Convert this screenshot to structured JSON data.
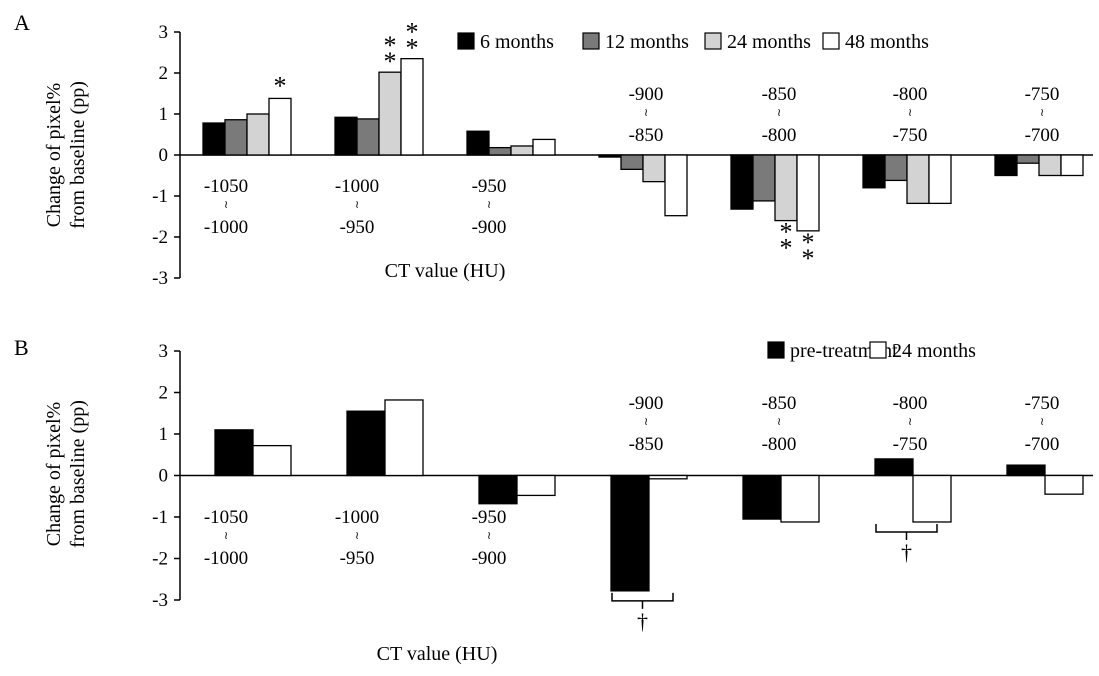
{
  "panels": [
    {
      "label": "A",
      "ylabel_line1": "Change of pixel%",
      "ylabel_line2": "from baseline (pp)",
      "xlabel": "CT value (HU)",
      "yticks": [
        "3",
        "2",
        "1",
        "0",
        "-1",
        "-2",
        "-3"
      ],
      "legend": [
        "6 months",
        "12 months",
        "24 months",
        "48 months"
      ],
      "categories": [
        {
          "top": "-1050",
          "tilde": "≀",
          "bottom": "-1000"
        },
        {
          "top": "-1000",
          "tilde": "≀",
          "bottom": "-950"
        },
        {
          "top": "-950",
          "tilde": "≀",
          "bottom": "-900"
        },
        {
          "top": "-900",
          "tilde": "≀",
          "bottom": "-850"
        },
        {
          "top": "-850",
          "tilde": "≀",
          "bottom": "-800"
        },
        {
          "top": "-800",
          "tilde": "≀",
          "bottom": "-750"
        },
        {
          "top": "-750",
          "tilde": "≀",
          "bottom": "-700"
        }
      ],
      "markers": {
        "single": "*",
        "double": "**"
      }
    },
    {
      "label": "B",
      "ylabel_line1": "Change of pixel%",
      "ylabel_line2": "from baseline (pp)",
      "xlabel": "CT value (HU)",
      "yticks": [
        "3",
        "2",
        "1",
        "0",
        "-1",
        "-2",
        "-3"
      ],
      "legend": [
        "pre-treatment",
        "24 months"
      ],
      "categories": [
        {
          "top": "-1050",
          "tilde": "≀",
          "bottom": "-1000"
        },
        {
          "top": "-1000",
          "tilde": "≀",
          "bottom": "-950"
        },
        {
          "top": "-950",
          "tilde": "≀",
          "bottom": "-900"
        },
        {
          "top": "-900",
          "tilde": "≀",
          "bottom": "-850"
        },
        {
          "top": "-850",
          "tilde": "≀",
          "bottom": "-800"
        },
        {
          "top": "-800",
          "tilde": "≀",
          "bottom": "-750"
        },
        {
          "top": "-750",
          "tilde": "≀",
          "bottom": "-700"
        }
      ],
      "markers": {
        "dagger": "†"
      }
    }
  ],
  "chart_data": [
    {
      "type": "bar",
      "panel": "A",
      "ylabel": "Change of pixel% from baseline (pp)",
      "xlabel": "CT value (HU)",
      "ylim": [
        -3,
        3
      ],
      "categories": [
        "-1050 ≀ -1000",
        "-1000 ≀ -950",
        "-950 ≀ -900",
        "-900 ≀ -850",
        "-850 ≀ -800",
        "-800 ≀ -750",
        "-750 ≀ -700"
      ],
      "legend_position": "top-right",
      "series": [
        {
          "name": "6 months",
          "color": "#000000",
          "values": [
            0.78,
            0.92,
            0.58,
            -0.05,
            -1.32,
            -0.8,
            -0.5
          ]
        },
        {
          "name": "12 months",
          "color": "#7a7a7a",
          "values": [
            0.86,
            0.88,
            0.18,
            -0.35,
            -1.12,
            -0.62,
            -0.2
          ]
        },
        {
          "name": "24 months",
          "color": "#d3d3d3",
          "values": [
            1.0,
            2.02,
            0.22,
            -0.65,
            -1.6,
            -1.18,
            -0.5
          ]
        },
        {
          "name": "48 months",
          "color": "#ffffff",
          "values": [
            1.38,
            2.35,
            0.38,
            -1.48,
            -1.85,
            -1.18,
            -0.5
          ]
        }
      ],
      "annotations": [
        {
          "category_index": 0,
          "series_index": 3,
          "text": "*"
        },
        {
          "category_index": 1,
          "series_index": 2,
          "text": "**"
        },
        {
          "category_index": 1,
          "series_index": 3,
          "text": "**"
        },
        {
          "category_index": 4,
          "series_index": 2,
          "text": "**"
        },
        {
          "category_index": 4,
          "series_index": 3,
          "text": "**"
        }
      ]
    },
    {
      "type": "bar",
      "panel": "B",
      "ylabel": "Change of pixel% from baseline (pp)",
      "xlabel": "CT value (HU)",
      "ylim": [
        -3,
        3
      ],
      "categories": [
        "-1050 ≀ -1000",
        "-1000 ≀ -950",
        "-950 ≀ -900",
        "-900 ≀ -850",
        "-850 ≀ -800",
        "-800 ≀ -750",
        "-750 ≀ -700"
      ],
      "legend_position": "top-right",
      "series": [
        {
          "name": "pre-treatment",
          "color": "#000000",
          "values": [
            1.1,
            1.55,
            -0.68,
            -2.78,
            -1.05,
            0.4,
            0.25
          ]
        },
        {
          "name": "24 months",
          "color": "#ffffff",
          "values": [
            0.72,
            1.82,
            -0.48,
            -0.08,
            -1.12,
            -1.12,
            -0.45
          ]
        }
      ],
      "annotations": [
        {
          "category_index": 3,
          "text": "†",
          "type": "bracket"
        },
        {
          "category_index": 5,
          "text": "†",
          "type": "bracket"
        }
      ]
    }
  ]
}
